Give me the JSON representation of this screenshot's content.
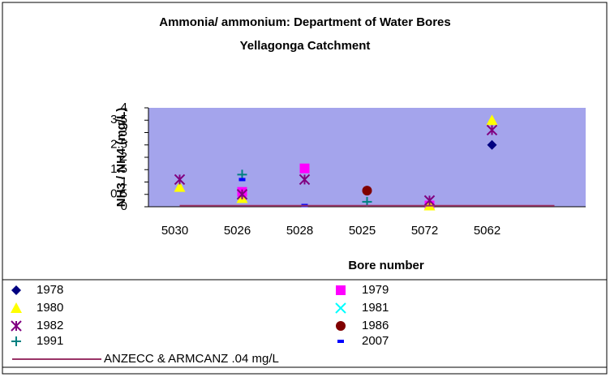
{
  "chart_data": {
    "type": "scatter",
    "title": "Ammonia/ ammonium: Department of Water Bores",
    "subtitle": "Yellagonga Catchment",
    "y_label": "NH3 / NH4 (mg/L)",
    "x_label": "Bore number",
    "categories": [
      "5030",
      "5026",
      "5028",
      "5025",
      "5072",
      "5062",
      null
    ],
    "ylim": [
      0,
      4
    ],
    "yticks": [
      0,
      0.5,
      1,
      1.5,
      2,
      2.5,
      3,
      3.5,
      4
    ],
    "plot_color": "#a4a4ec",
    "series": [
      {
        "name": "1978",
        "color": "#000080",
        "marker": "diamond",
        "values": [
          null,
          null,
          null,
          null,
          null,
          2.5,
          null
        ]
      },
      {
        "name": "1979",
        "color": "#ff00ff",
        "marker": "square",
        "values": [
          null,
          0.6,
          1.55,
          null,
          0.05,
          null,
          null
        ]
      },
      {
        "name": "1980",
        "color": "#ffff00",
        "marker": "triangle",
        "values": [
          0.8,
          0.35,
          null,
          null,
          0.05,
          3.5,
          null
        ]
      },
      {
        "name": "1981",
        "color": "#00ffff",
        "marker": "x",
        "values": [
          null,
          null,
          null,
          null,
          null,
          null,
          null
        ]
      },
      {
        "name": "1982",
        "color": "#800080",
        "marker": "asterisk",
        "values": [
          1.1,
          0.5,
          1.1,
          null,
          0.25,
          3.1,
          null
        ]
      },
      {
        "name": "1986",
        "color": "#800000",
        "marker": "circle",
        "values": [
          null,
          null,
          null,
          0.65,
          null,
          null,
          null
        ]
      },
      {
        "name": "1991",
        "color": "#008080",
        "marker": "plus",
        "values": [
          null,
          1.3,
          null,
          0.2,
          null,
          null,
          null
        ]
      },
      {
        "name": "2007",
        "color": "#0000ff",
        "marker": "dash",
        "values": [
          null,
          1.1,
          0.05,
          null,
          null,
          null,
          null
        ]
      },
      {
        "name": "ANZECC & ARMCANZ .04 mg/L",
        "color": "#993366",
        "marker": "line",
        "values": [
          0.04,
          0.04,
          0.04,
          0.04,
          0.04,
          0.04,
          0.04
        ]
      }
    ]
  }
}
